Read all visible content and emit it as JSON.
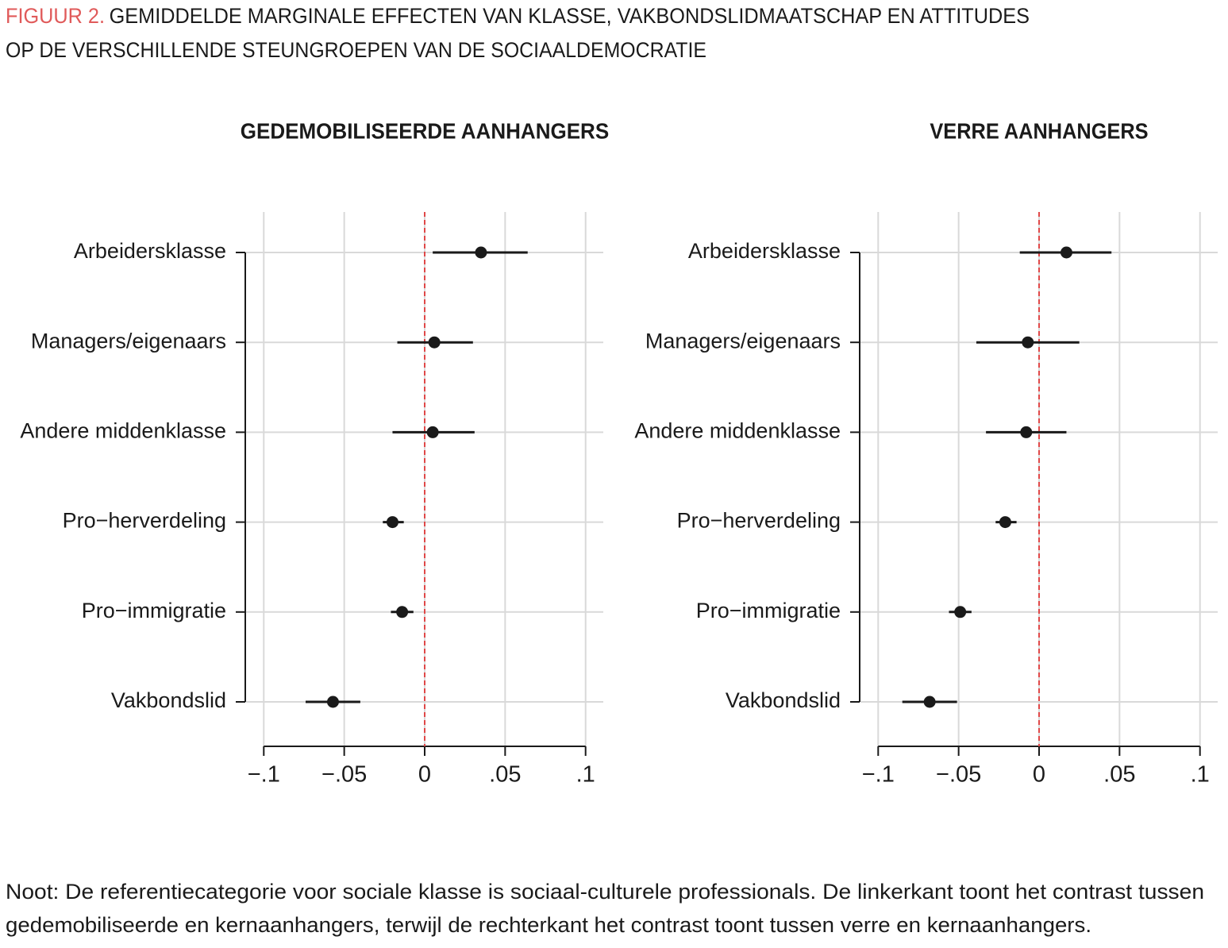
{
  "figure_label": "FIGUUR 2.",
  "title_lines": [
    "GEMIDDELDE MARGINALE EFFECTEN VAN KLASSE, VAKBONDSLIDMAATSCHAP EN ATTITUDES",
    "OP DE VERSCHILLENDE STEUNGROEPEN VAN DE SOCIAALDEMOCRATIE"
  ],
  "note_lines": [
    "Noot: De referentiecategorie voor sociale klasse is sociaal-culturele professionals. De linkerkant toont het contrast tussen",
    "gedemobiliseerde en kernaanhangers, terwijl de rechterkant het contrast toont tussen verre en kernaanhangers."
  ],
  "chart_data": [
    {
      "type": "coefficient",
      "title": "GEDEMOBILISEERDE AANHANGERS",
      "categories": [
        "Arbeidersklasse",
        "Managers/eigenaars",
        "Andere middenklasse",
        "Pro−herverdeling",
        "Pro−immigratie",
        "Vakbondslid"
      ],
      "values": [
        0.035,
        0.006,
        0.005,
        -0.02,
        -0.014,
        -0.057
      ],
      "ci_low": [
        0.005,
        -0.017,
        -0.02,
        -0.026,
        -0.021,
        -0.074
      ],
      "ci_high": [
        0.064,
        0.03,
        0.031,
        -0.013,
        -0.007,
        -0.04
      ],
      "color": "#1a1a1a",
      "ref_line": 0,
      "ref_color": "#e04848",
      "xlim": [
        -0.111,
        0.111
      ],
      "xticks": [
        {
          "value": -0.1,
          "label": "−.1"
        },
        {
          "value": -0.05,
          "label": "−.05"
        },
        0,
        {
          "value": 0.05,
          "label": ".05"
        },
        {
          "value": 0.1,
          "label": ".1"
        }
      ],
      "grid": true
    },
    {
      "type": "coefficient",
      "title": "VERRE AANHANGERS",
      "categories": [
        "Arbeidersklasse",
        "Managers/eigenaars",
        "Andere middenklasse",
        "Pro−herverdeling",
        "Pro−immigratie",
        "Vakbondslid"
      ],
      "values": [
        0.017,
        -0.007,
        -0.008,
        -0.021,
        -0.049,
        -0.068
      ],
      "ci_low": [
        -0.012,
        -0.039,
        -0.033,
        -0.027,
        -0.056,
        -0.085
      ],
      "ci_high": [
        0.045,
        0.025,
        0.017,
        -0.014,
        -0.042,
        -0.051
      ],
      "color": "#1a1a1a",
      "ref_line": 0,
      "ref_color": "#e04848",
      "xlim": [
        -0.111,
        0.111
      ],
      "xticks": [
        {
          "value": -0.1,
          "label": "−.1"
        },
        {
          "value": -0.05,
          "label": "−.05"
        },
        0,
        {
          "value": 0.05,
          "label": ".05"
        },
        {
          "value": 0.1,
          "label": ".1"
        }
      ],
      "grid": true
    }
  ]
}
